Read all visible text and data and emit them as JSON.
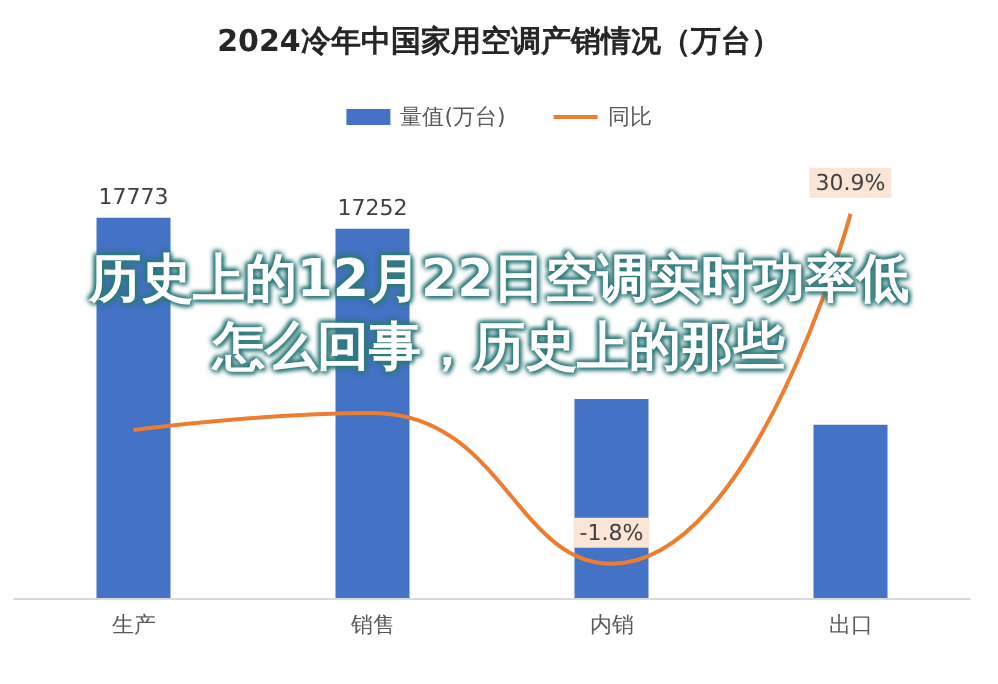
{
  "chart_data": {
    "type": "bar",
    "title": "2024冷年中国家用空调产销情况（万台）",
    "categories": [
      "生产",
      "销售",
      "内销",
      "出口"
    ],
    "series": [
      {
        "name": "量值(万台)",
        "color": "#4472c4",
        "values": [
          17773,
          17252,
          9300,
          8100
        ],
        "value_labels": [
          "17773",
          "17252",
          null,
          null
        ]
      },
      {
        "name": "同比",
        "type": "line",
        "axis": "y2",
        "color": "#ed7d31",
        "values": [
          10.7,
          12.3,
          -1.8,
          30.9
        ],
        "value_labels": [
          null,
          null,
          "-1.8%",
          "30.9%"
        ]
      }
    ],
    "ylim": [
      0,
      20000
    ],
    "y2lim": [
      -5,
      35
    ],
    "tick_labels": "x",
    "legend": "top",
    "marker": "none",
    "grid": false,
    "annotations": [
      "历史上的12月22日空调实时功率低怎么回事，历史上的那些"
    ]
  }
}
